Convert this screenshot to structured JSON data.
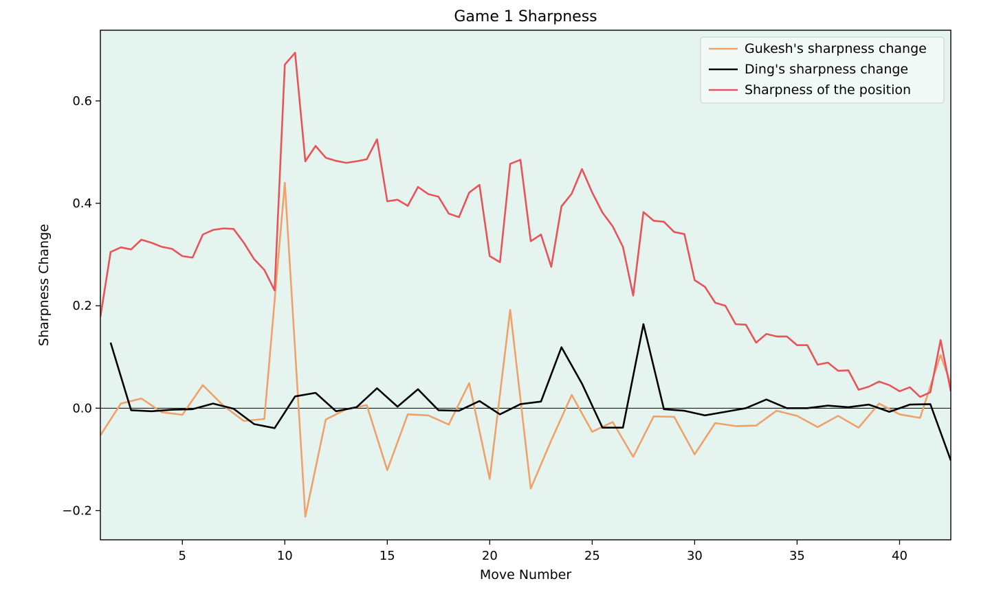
{
  "chart_data": {
    "type": "line",
    "title": "Game 1 Sharpness",
    "xlabel": "Move Number",
    "ylabel": "Sharpness Change",
    "xlim": [
      1,
      42.5
    ],
    "ylim": [
      -0.257,
      0.738
    ],
    "xticks": [
      5,
      10,
      15,
      20,
      25,
      30,
      35,
      40
    ],
    "yticks": [
      -0.2,
      0.0,
      0.2,
      0.4,
      0.6
    ],
    "ytick_labels": [
      "−0.2",
      "0.0",
      "0.2",
      "0.4",
      "0.6"
    ],
    "grid": false,
    "background_color": "#e5f4ee",
    "zero_line": true,
    "legend_position": "top-right",
    "series": [
      {
        "name": "Gukesh's sharpness change",
        "color": "#f0a16a",
        "x": [
          1.0,
          2.0,
          3.0,
          4.0,
          5.0,
          6.0,
          7.0,
          8.0,
          9.0,
          10.0,
          11.0,
          12.0,
          13.0,
          14.0,
          15.0,
          16.0,
          17.0,
          18.0,
          19.0,
          20.0,
          21.0,
          22.0,
          23.0,
          24.0,
          25.0,
          26.0,
          27.0,
          28.0,
          29.0,
          30.0,
          31.0,
          32.0,
          33.0,
          34.0,
          35.0,
          36.0,
          37.0,
          38.0,
          39.0,
          40.0,
          41.0,
          42.0,
          42.5
        ],
        "y": [
          -0.053,
          0.009,
          0.019,
          -0.008,
          -0.013,
          0.045,
          0.005,
          -0.025,
          -0.021,
          0.44,
          -0.212,
          -0.022,
          -0.002,
          0.006,
          -0.121,
          -0.012,
          -0.014,
          -0.032,
          0.049,
          -0.138,
          0.192,
          -0.157,
          -0.063,
          0.026,
          -0.046,
          -0.027,
          -0.095,
          -0.016,
          -0.017,
          -0.09,
          -0.029,
          -0.035,
          -0.034,
          -0.005,
          -0.015,
          -0.037,
          -0.015,
          -0.038,
          0.009,
          -0.012,
          -0.019,
          0.104,
          0.047
        ]
      },
      {
        "name": "Ding's sharpness change",
        "color": "#000000",
        "x": [
          1.5,
          2.5,
          3.5,
          4.5,
          5.5,
          6.5,
          7.5,
          8.5,
          9.5,
          10.5,
          11.5,
          12.5,
          13.5,
          14.5,
          15.5,
          16.5,
          17.5,
          18.5,
          19.5,
          20.5,
          21.5,
          22.5,
          23.5,
          24.5,
          25.5,
          26.5,
          27.5,
          28.5,
          29.5,
          30.5,
          31.5,
          32.5,
          33.5,
          34.5,
          35.5,
          36.5,
          37.5,
          38.5,
          39.5,
          40.5,
          41.5,
          42.5
        ],
        "y": [
          0.128,
          -0.004,
          -0.006,
          -0.003,
          -0.002,
          0.009,
          -0.001,
          -0.031,
          -0.039,
          0.023,
          0.03,
          -0.006,
          0.002,
          0.039,
          0.003,
          0.037,
          -0.004,
          -0.005,
          0.014,
          -0.012,
          0.008,
          0.013,
          0.119,
          0.048,
          -0.038,
          -0.038,
          0.164,
          -0.002,
          -0.005,
          -0.014,
          -0.007,
          0.0,
          0.017,
          0.0,
          0.0,
          0.005,
          0.002,
          0.007,
          -0.007,
          0.007,
          0.008,
          -0.102
        ]
      },
      {
        "name": "Sharpness of the position",
        "color": "#e8525a",
        "x": [
          1.0,
          1.5,
          2.0,
          2.5,
          3.0,
          3.5,
          4.0,
          4.5,
          5.0,
          5.5,
          6.0,
          6.5,
          7.0,
          7.5,
          8.0,
          8.5,
          9.0,
          9.5,
          10.0,
          10.5,
          11.0,
          11.5,
          12.0,
          12.5,
          13.0,
          13.5,
          14.0,
          14.5,
          15.0,
          15.5,
          16.0,
          16.5,
          17.0,
          17.5,
          18.0,
          18.5,
          19.0,
          19.5,
          20.0,
          20.5,
          21.0,
          21.5,
          22.0,
          22.5,
          23.0,
          23.5,
          24.0,
          24.5,
          25.0,
          25.5,
          26.0,
          26.5,
          27.0,
          27.5,
          28.0,
          28.5,
          29.0,
          29.5,
          30.0,
          30.5,
          31.0,
          31.5,
          32.0,
          32.5,
          33.0,
          33.5,
          34.0,
          34.5,
          35.0,
          35.5,
          36.0,
          36.5,
          37.0,
          37.5,
          38.0,
          38.5,
          39.0,
          39.5,
          40.0,
          40.5,
          41.0,
          41.5,
          42.0,
          42.5
        ],
        "y": [
          0.178,
          0.305,
          0.314,
          0.31,
          0.329,
          0.323,
          0.315,
          0.311,
          0.297,
          0.294,
          0.339,
          0.348,
          0.351,
          0.35,
          0.323,
          0.291,
          0.27,
          0.23,
          0.671,
          0.694,
          0.482,
          0.512,
          0.489,
          0.483,
          0.479,
          0.482,
          0.486,
          0.525,
          0.404,
          0.407,
          0.395,
          0.432,
          0.418,
          0.413,
          0.38,
          0.373,
          0.421,
          0.436,
          0.297,
          0.285,
          0.477,
          0.485,
          0.326,
          0.339,
          0.276,
          0.394,
          0.419,
          0.467,
          0.421,
          0.382,
          0.355,
          0.315,
          0.22,
          0.383,
          0.366,
          0.364,
          0.344,
          0.34,
          0.25,
          0.237,
          0.206,
          0.2,
          0.164,
          0.163,
          0.128,
          0.145,
          0.14,
          0.14,
          0.123,
          0.123,
          0.085,
          0.089,
          0.073,
          0.074,
          0.036,
          0.042,
          0.052,
          0.045,
          0.033,
          0.041,
          0.022,
          0.031,
          0.133,
          0.033
        ]
      }
    ]
  }
}
